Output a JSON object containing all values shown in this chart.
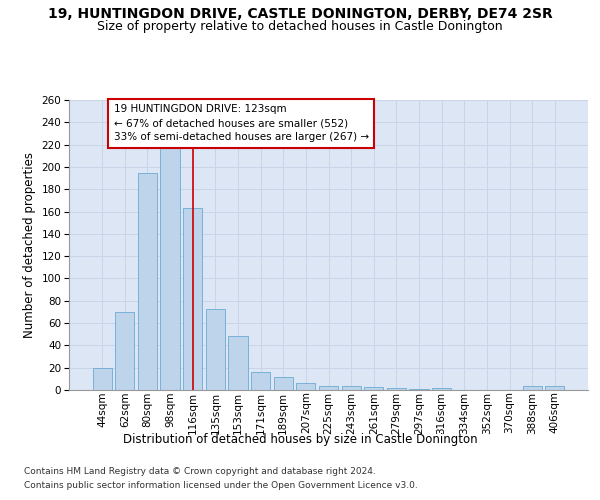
{
  "title_line1": "19, HUNTINGDON DRIVE, CASTLE DONINGTON, DERBY, DE74 2SR",
  "title_line2": "Size of property relative to detached houses in Castle Donington",
  "xlabel": "Distribution of detached houses by size in Castle Donington",
  "ylabel": "Number of detached properties",
  "categories": [
    "44sqm",
    "62sqm",
    "80sqm",
    "98sqm",
    "116sqm",
    "135sqm",
    "153sqm",
    "171sqm",
    "189sqm",
    "207sqm",
    "225sqm",
    "243sqm",
    "261sqm",
    "279sqm",
    "297sqm",
    "316sqm",
    "334sqm",
    "352sqm",
    "370sqm",
    "388sqm",
    "406sqm"
  ],
  "values": [
    20,
    70,
    195,
    217,
    163,
    73,
    48,
    16,
    12,
    6,
    4,
    4,
    3,
    2,
    1,
    2,
    0,
    0,
    0,
    4,
    4
  ],
  "bar_color": "#bdd4eb",
  "bar_edge_color": "#6aaad4",
  "vline_x_index": 4,
  "annotation_text1": "19 HUNTINGDON DRIVE: 123sqm",
  "annotation_text2": "← 67% of detached houses are smaller (552)",
  "annotation_text3": "33% of semi-detached houses are larger (267) →",
  "annotation_box_color": "#ffffff",
  "annotation_border_color": "#cc0000",
  "vline_color": "#cc0000",
  "ylim": [
    0,
    260
  ],
  "yticks": [
    0,
    20,
    40,
    60,
    80,
    100,
    120,
    140,
    160,
    180,
    200,
    220,
    240,
    260
  ],
  "grid_color": "#c8d4e8",
  "background_color": "#dce6f5",
  "fig_background": "#ffffff",
  "footer1": "Contains HM Land Registry data © Crown copyright and database right 2024.",
  "footer2": "Contains public sector information licensed under the Open Government Licence v3.0.",
  "title_fontsize": 10,
  "subtitle_fontsize": 9,
  "axis_label_fontsize": 8.5,
  "tick_fontsize": 7.5,
  "annotation_fontsize": 7.5,
  "footer_fontsize": 6.5
}
